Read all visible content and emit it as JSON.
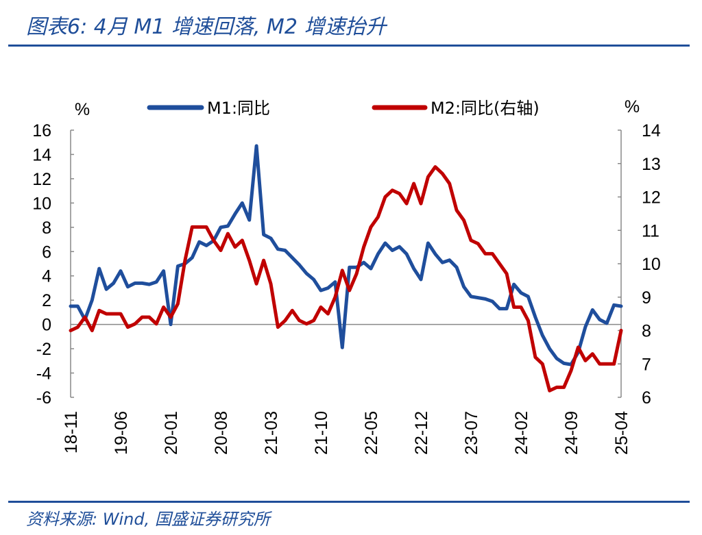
{
  "title": "图表6: 4月 M1 增速回落, M2 增速抬升",
  "source": "资料来源: Wind, 国盛证券研究所",
  "chart_data": {
    "type": "line",
    "y_left_unit": "%",
    "y_right_unit": "%",
    "y_left_ticks": [
      -6,
      -4,
      -2,
      0,
      2,
      4,
      6,
      8,
      10,
      12,
      14,
      16
    ],
    "y_right_ticks": [
      6,
      7,
      8,
      9,
      10,
      11,
      12,
      13,
      14
    ],
    "ylim_left": [
      -6,
      16
    ],
    "ylim_right": [
      6,
      14
    ],
    "x_ticks": [
      "18-11",
      "19-06",
      "20-01",
      "20-08",
      "21-03",
      "21-10",
      "22-05",
      "22-12",
      "23-07",
      "24-02",
      "24-09",
      "25-04"
    ],
    "legend_position": "top",
    "grid": false,
    "series": [
      {
        "name": "M1:同比",
        "axis": "left",
        "color": "#1f4e9c",
        "x": [
          "18-11",
          "18-12",
          "19-01",
          "19-02",
          "19-03",
          "19-04",
          "19-05",
          "19-06",
          "19-07",
          "19-08",
          "19-09",
          "19-10",
          "19-11",
          "19-12",
          "20-01",
          "20-02",
          "20-03",
          "20-04",
          "20-05",
          "20-06",
          "20-07",
          "20-08",
          "20-09",
          "20-10",
          "20-11",
          "20-12",
          "21-01",
          "21-02",
          "21-03",
          "21-04",
          "21-05",
          "21-06",
          "21-07",
          "21-08",
          "21-09",
          "21-10",
          "21-11",
          "21-12",
          "22-01",
          "22-02",
          "22-03",
          "22-04",
          "22-05",
          "22-06",
          "22-07",
          "22-08",
          "22-09",
          "22-10",
          "22-11",
          "22-12",
          "23-01",
          "23-02",
          "23-03",
          "23-04",
          "23-05",
          "23-06",
          "23-07",
          "23-08",
          "23-09",
          "23-10",
          "23-11",
          "23-12",
          "24-01",
          "24-02",
          "24-03",
          "24-04",
          "24-05",
          "24-06",
          "24-07",
          "24-08",
          "24-09",
          "24-10",
          "24-11",
          "24-12",
          "25-01",
          "25-02",
          "25-03",
          "25-04"
        ],
        "values": [
          1.5,
          1.5,
          0.4,
          2.0,
          4.6,
          2.9,
          3.4,
          4.4,
          3.1,
          3.4,
          3.4,
          3.3,
          3.5,
          4.4,
          0.0,
          4.8,
          5.0,
          5.5,
          6.8,
          6.5,
          6.9,
          8.0,
          8.1,
          9.1,
          10.0,
          8.6,
          14.7,
          7.4,
          7.1,
          6.2,
          6.1,
          5.5,
          4.9,
          4.2,
          3.7,
          2.8,
          3.0,
          3.5,
          -1.9,
          4.7,
          4.7,
          5.1,
          4.6,
          5.8,
          6.7,
          6.1,
          6.4,
          5.8,
          4.6,
          3.7,
          6.7,
          5.8,
          5.1,
          5.3,
          4.7,
          3.1,
          2.3,
          2.2,
          2.1,
          1.9,
          1.3,
          1.3,
          3.3,
          2.6,
          2.3,
          0.6,
          -0.9,
          -2.0,
          -2.8,
          -3.2,
          -3.3,
          -2.3,
          -0.2,
          1.2,
          0.4,
          0.1,
          1.6,
          1.5
        ]
      },
      {
        "name": "M2:同比(右轴)",
        "axis": "right",
        "color": "#c00000",
        "x": [
          "18-11",
          "18-12",
          "19-01",
          "19-02",
          "19-03",
          "19-04",
          "19-05",
          "19-06",
          "19-07",
          "19-08",
          "19-09",
          "19-10",
          "19-11",
          "19-12",
          "20-01",
          "20-02",
          "20-03",
          "20-04",
          "20-05",
          "20-06",
          "20-07",
          "20-08",
          "20-09",
          "20-10",
          "20-11",
          "20-12",
          "21-01",
          "21-02",
          "21-03",
          "21-04",
          "21-05",
          "21-06",
          "21-07",
          "21-08",
          "21-09",
          "21-10",
          "21-11",
          "21-12",
          "22-01",
          "22-02",
          "22-03",
          "22-04",
          "22-05",
          "22-06",
          "22-07",
          "22-08",
          "22-09",
          "22-10",
          "22-11",
          "22-12",
          "23-01",
          "23-02",
          "23-03",
          "23-04",
          "23-05",
          "23-06",
          "23-07",
          "23-08",
          "23-09",
          "23-10",
          "23-11",
          "23-12",
          "24-01",
          "24-02",
          "24-03",
          "24-04",
          "24-05",
          "24-06",
          "24-07",
          "24-08",
          "24-09",
          "24-10",
          "24-11",
          "24-12",
          "25-01",
          "25-02",
          "25-03",
          "25-04"
        ],
        "values": [
          8.0,
          8.1,
          8.4,
          8.0,
          8.6,
          8.5,
          8.5,
          8.5,
          8.1,
          8.2,
          8.4,
          8.4,
          8.2,
          8.7,
          8.4,
          8.8,
          10.1,
          11.1,
          11.1,
          11.1,
          10.7,
          10.4,
          10.9,
          10.5,
          10.7,
          10.1,
          9.4,
          10.1,
          9.4,
          8.1,
          8.3,
          8.6,
          8.3,
          8.2,
          8.3,
          8.7,
          8.5,
          9.0,
          9.8,
          9.2,
          9.7,
          10.5,
          11.1,
          11.4,
          12.0,
          12.2,
          12.1,
          11.8,
          12.4,
          11.8,
          12.6,
          12.9,
          12.7,
          12.4,
          11.6,
          11.3,
          10.7,
          10.6,
          10.3,
          10.3,
          10.0,
          9.7,
          8.7,
          8.7,
          8.3,
          7.2,
          7.0,
          6.2,
          6.3,
          6.3,
          6.8,
          7.5,
          7.1,
          7.3,
          7.0,
          7.0,
          7.0,
          8.0
        ]
      }
    ]
  }
}
